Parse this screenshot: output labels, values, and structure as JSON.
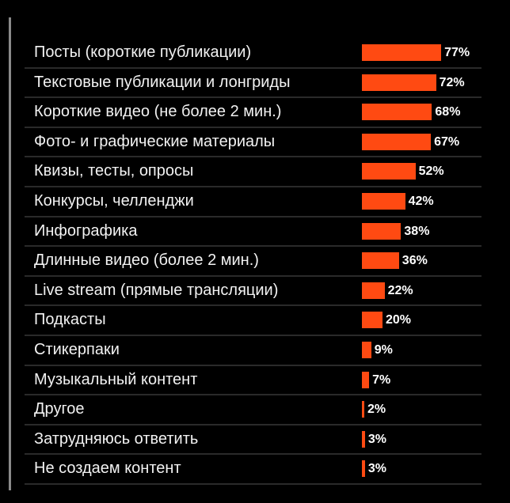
{
  "chart_data": {
    "type": "bar",
    "orientation": "horizontal",
    "categories": [
      "Посты (короткие публикации)",
      "Текстовые публикации и лонгриды",
      "Короткие видео (не более 2 мин.)",
      "Фото- и графические материалы",
      "Квизы, тесты, опросы",
      "Конкурсы, челленджи",
      "Инфографика",
      "Длинные видео (более 2 мин.)",
      "Live stream (прямые трансляции)",
      "Подкасты",
      "Стикерпаки",
      "Музыкальный контент",
      "Другое",
      "Затрудняюсь ответить",
      "Не создаем контент"
    ],
    "values": [
      77,
      72,
      68,
      67,
      52,
      42,
      38,
      36,
      22,
      20,
      9,
      7,
      2,
      3,
      3
    ],
    "value_labels": [
      "77%",
      "72%",
      "68%",
      "67%",
      "52%",
      "42%",
      "38%",
      "36%",
      "22%",
      "20%",
      "9%",
      "7%",
      "2%",
      "3%",
      "3%"
    ],
    "unit": "%",
    "xlim": [
      0,
      100
    ],
    "bar_color": "#ff4a12",
    "background": "#000000",
    "grid": false
  }
}
